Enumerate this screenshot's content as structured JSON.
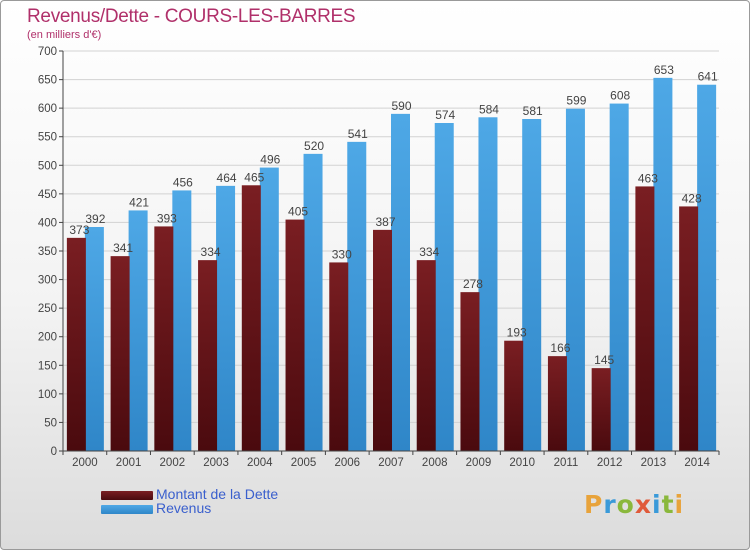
{
  "header": {
    "title": "Revenus/Dette - COURS-LES-BARRES",
    "subtitle": "(en milliers d'€)"
  },
  "legend": {
    "debt_label": "Montant de la Dette",
    "revenue_label": "Revenus"
  },
  "logo": {
    "text": "Proxiti",
    "letters": [
      {
        "ch": "P",
        "color": "#e8a33b"
      },
      {
        "ch": "r",
        "color": "#3a9ad9"
      },
      {
        "ch": "o",
        "color": "#8ab83c"
      },
      {
        "ch": "x",
        "color": "#e05a3a"
      },
      {
        "ch": "i",
        "color": "#3a9ad9"
      },
      {
        "ch": "t",
        "color": "#8ab83c"
      },
      {
        "ch": "i",
        "color": "#e8a33b"
      }
    ]
  },
  "colors": {
    "debt": "#7a1e22",
    "debt_dark": "#4a0a0e",
    "revenue": "#4ea8e6",
    "revenue_dark": "#2f86c8",
    "title": "#b0306a",
    "legend_text": "#3a5fcd",
    "grid": "#d2d2d2",
    "axis": "#444444",
    "label": "#444444"
  },
  "chart_data": {
    "type": "bar",
    "title": "Revenus/Dette - COURS-LES-BARRES",
    "subtitle": "(en milliers d'€)",
    "categories": [
      "2000",
      "2001",
      "2002",
      "2003",
      "2004",
      "2005",
      "2006",
      "2007",
      "2008",
      "2009",
      "2010",
      "2011",
      "2012",
      "2013",
      "2014"
    ],
    "series": [
      {
        "name": "Montant de la Dette",
        "values": [
          373,
          341,
          393,
          334,
          465,
          405,
          330,
          387,
          334,
          278,
          193,
          166,
          145,
          463,
          428
        ]
      },
      {
        "name": "Revenus",
        "values": [
          392,
          421,
          456,
          464,
          496,
          520,
          541,
          590,
          574,
          584,
          581,
          599,
          608,
          653,
          641
        ]
      }
    ],
    "ylim": [
      0,
      700
    ],
    "yticks": [
      0,
      50,
      100,
      150,
      200,
      250,
      300,
      350,
      400,
      450,
      500,
      550,
      600,
      650,
      700
    ],
    "grid": true,
    "legend_position": "bottom-left"
  }
}
